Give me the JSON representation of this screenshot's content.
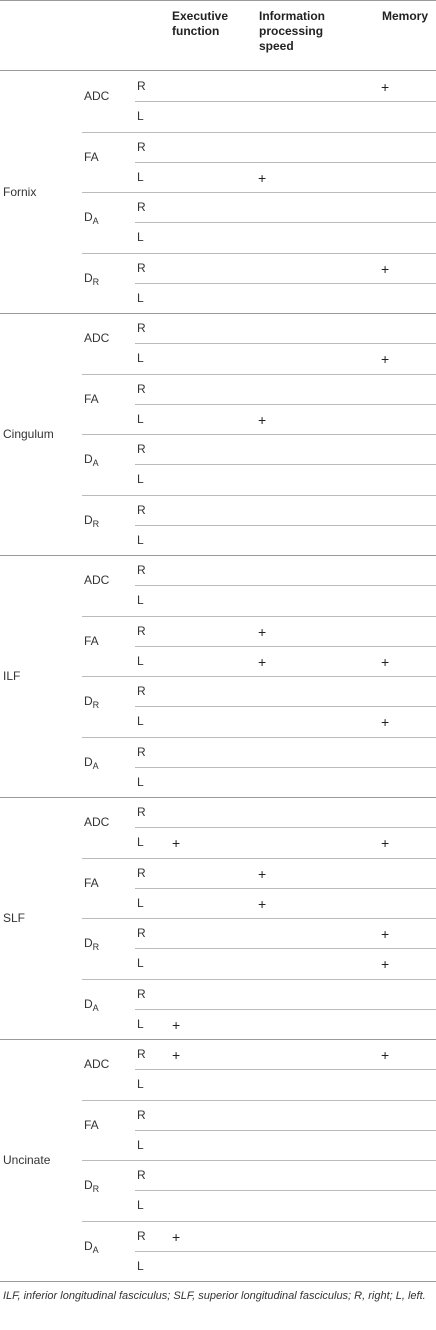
{
  "headers": {
    "executive": "Executive function",
    "info": "Information processing speed",
    "memory": "Memory"
  },
  "tracts": [
    {
      "name": "Fornix",
      "metrics": [
        {
          "label": "ADC",
          "sub": "",
          "rows": [
            {
              "side": "R",
              "marks": [
                false,
                false,
                true
              ]
            },
            {
              "side": "L",
              "marks": [
                false,
                false,
                false
              ]
            }
          ]
        },
        {
          "label": "FA",
          "sub": "",
          "rows": [
            {
              "side": "R",
              "marks": [
                false,
                false,
                false
              ]
            },
            {
              "side": "L",
              "marks": [
                false,
                true,
                false
              ]
            }
          ]
        },
        {
          "label": "D",
          "sub": "A",
          "rows": [
            {
              "side": "R",
              "marks": [
                false,
                false,
                false
              ]
            },
            {
              "side": "L",
              "marks": [
                false,
                false,
                false
              ]
            }
          ]
        },
        {
          "label": "D",
          "sub": "R",
          "rows": [
            {
              "side": "R",
              "marks": [
                false,
                false,
                true
              ]
            },
            {
              "side": "L",
              "marks": [
                false,
                false,
                false
              ]
            }
          ]
        }
      ]
    },
    {
      "name": "Cingulum",
      "metrics": [
        {
          "label": "ADC",
          "sub": "",
          "rows": [
            {
              "side": "R",
              "marks": [
                false,
                false,
                false
              ]
            },
            {
              "side": "L",
              "marks": [
                false,
                false,
                true
              ]
            }
          ]
        },
        {
          "label": "FA",
          "sub": "",
          "rows": [
            {
              "side": "R",
              "marks": [
                false,
                false,
                false
              ]
            },
            {
              "side": "L",
              "marks": [
                false,
                true,
                false
              ]
            }
          ]
        },
        {
          "label": "D",
          "sub": "A",
          "rows": [
            {
              "side": "R",
              "marks": [
                false,
                false,
                false
              ]
            },
            {
              "side": "L",
              "marks": [
                false,
                false,
                false
              ]
            }
          ]
        },
        {
          "label": "D",
          "sub": "R",
          "rows": [
            {
              "side": "R",
              "marks": [
                false,
                false,
                false
              ]
            },
            {
              "side": "L",
              "marks": [
                false,
                false,
                false
              ]
            }
          ]
        }
      ]
    },
    {
      "name": "ILF",
      "metrics": [
        {
          "label": "ADC",
          "sub": "",
          "rows": [
            {
              "side": "R",
              "marks": [
                false,
                false,
                false
              ]
            },
            {
              "side": "L",
              "marks": [
                false,
                false,
                false
              ]
            }
          ]
        },
        {
          "label": "FA",
          "sub": "",
          "rows": [
            {
              "side": "R",
              "marks": [
                false,
                true,
                false
              ]
            },
            {
              "side": "L",
              "marks": [
                false,
                true,
                true
              ]
            }
          ]
        },
        {
          "label": "D",
          "sub": "R",
          "rows": [
            {
              "side": "R",
              "marks": [
                false,
                false,
                false
              ]
            },
            {
              "side": "L",
              "marks": [
                false,
                false,
                true
              ]
            }
          ]
        },
        {
          "label": "D",
          "sub": "A",
          "rows": [
            {
              "side": "R",
              "marks": [
                false,
                false,
                false
              ]
            },
            {
              "side": "L",
              "marks": [
                false,
                false,
                false
              ]
            }
          ]
        }
      ]
    },
    {
      "name": "SLF",
      "metrics": [
        {
          "label": "ADC",
          "sub": "",
          "rows": [
            {
              "side": "R",
              "marks": [
                false,
                false,
                false
              ]
            },
            {
              "side": "L",
              "marks": [
                true,
                false,
                true
              ]
            }
          ]
        },
        {
          "label": "FA",
          "sub": "",
          "rows": [
            {
              "side": "R",
              "marks": [
                false,
                true,
                false
              ]
            },
            {
              "side": "L",
              "marks": [
                false,
                true,
                false
              ]
            }
          ]
        },
        {
          "label": "D",
          "sub": "R",
          "rows": [
            {
              "side": "R",
              "marks": [
                false,
                false,
                true
              ]
            },
            {
              "side": "L",
              "marks": [
                false,
                false,
                true
              ]
            }
          ]
        },
        {
          "label": "D",
          "sub": "A",
          "rows": [
            {
              "side": "R",
              "marks": [
                false,
                false,
                false
              ]
            },
            {
              "side": "L",
              "marks": [
                true,
                false,
                false
              ]
            }
          ]
        }
      ]
    },
    {
      "name": "Uncinate",
      "metrics": [
        {
          "label": "ADC",
          "sub": "",
          "rows": [
            {
              "side": "R",
              "marks": [
                true,
                false,
                true
              ]
            },
            {
              "side": "L",
              "marks": [
                false,
                false,
                false
              ]
            }
          ]
        },
        {
          "label": "FA",
          "sub": "",
          "rows": [
            {
              "side": "R",
              "marks": [
                false,
                false,
                false
              ]
            },
            {
              "side": "L",
              "marks": [
                false,
                false,
                false
              ]
            }
          ]
        },
        {
          "label": "D",
          "sub": "R",
          "rows": [
            {
              "side": "R",
              "marks": [
                false,
                false,
                false
              ]
            },
            {
              "side": "L",
              "marks": [
                false,
                false,
                false
              ]
            }
          ]
        },
        {
          "label": "D",
          "sub": "A",
          "rows": [
            {
              "side": "R",
              "marks": [
                true,
                false,
                false
              ]
            },
            {
              "side": "L",
              "marks": [
                false,
                false,
                false
              ]
            }
          ]
        }
      ]
    }
  ],
  "plus_symbol": "+",
  "footnote": "ILF, inferior longitudinal fasciculus; SLF, superior longitudinal fasciculus; R, right; L, left."
}
